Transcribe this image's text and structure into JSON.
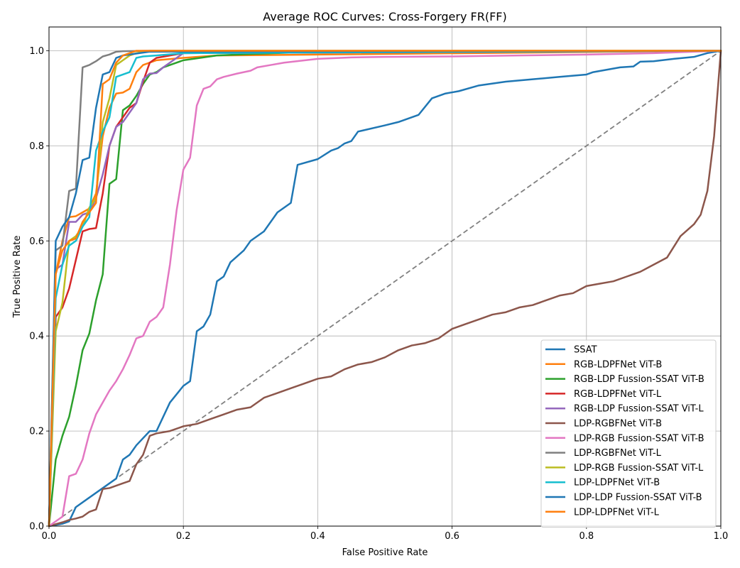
{
  "chart_data": {
    "type": "line",
    "title": "Average ROC Curves: Cross-Forgery FR(FF)",
    "xlabel": "False Positive Rate",
    "ylabel": "True Positive Rate",
    "xlim": [
      0,
      1
    ],
    "ylim": [
      0,
      1.05
    ],
    "xticks": [
      0.0,
      0.2,
      0.4,
      0.6,
      0.8,
      1.0
    ],
    "yticks": [
      0.0,
      0.2,
      0.4,
      0.6,
      0.8,
      1.0
    ],
    "xtick_labels": [
      "0.0",
      "0.2",
      "0.4",
      "0.6",
      "0.8",
      "1.0"
    ],
    "ytick_labels": [
      "0.0",
      "0.2",
      "0.4",
      "0.6",
      "0.8",
      "1.0"
    ],
    "grid": true,
    "legend_position": "lower-right",
    "diagonal": {
      "x": [
        0,
        1
      ],
      "y": [
        0,
        1
      ],
      "color": "#808080",
      "style": "dashed"
    },
    "series": [
      {
        "name": "SSAT",
        "color": "#1f77b4",
        "x": [
          0,
          0.02,
          0.03,
          0.04,
          0.06,
          0.08,
          0.1,
          0.11,
          0.12,
          0.13,
          0.15,
          0.16,
          0.18,
          0.2,
          0.21,
          0.22,
          0.23,
          0.24,
          0.25,
          0.26,
          0.27,
          0.29,
          0.3,
          0.32,
          0.33,
          0.34,
          0.36,
          0.37,
          0.4,
          0.42,
          0.43,
          0.44,
          0.45,
          0.46,
          0.5,
          0.52,
          0.55,
          0.57,
          0.59,
          0.61,
          0.64,
          0.68,
          0.72,
          0.76,
          0.8,
          0.81,
          0.83,
          0.85,
          0.87,
          0.88,
          0.9,
          0.93,
          0.96,
          0.98,
          1.0
        ],
        "y": [
          0,
          0.005,
          0.01,
          0.04,
          0.06,
          0.08,
          0.1,
          0.14,
          0.15,
          0.17,
          0.2,
          0.2,
          0.26,
          0.295,
          0.305,
          0.41,
          0.42,
          0.445,
          0.515,
          0.525,
          0.555,
          0.58,
          0.6,
          0.62,
          0.64,
          0.66,
          0.68,
          0.76,
          0.772,
          0.79,
          0.795,
          0.805,
          0.81,
          0.83,
          0.843,
          0.85,
          0.865,
          0.9,
          0.91,
          0.915,
          0.927,
          0.935,
          0.94,
          0.945,
          0.95,
          0.955,
          0.96,
          0.965,
          0.967,
          0.977,
          0.978,
          0.983,
          0.987,
          0.995,
          1.0
        ]
      },
      {
        "name": "RGB-LDPFNet ViT-B",
        "color": "#ff7f0e",
        "x": [
          0,
          0.01,
          0.02,
          0.03,
          0.04,
          0.05,
          0.06,
          0.07,
          0.08,
          0.09,
          0.1,
          0.11,
          0.12,
          0.13,
          0.14,
          0.15,
          0.16,
          0.2,
          0.25,
          1.0
        ],
        "y": [
          0,
          0.53,
          0.6,
          0.65,
          0.652,
          0.66,
          0.668,
          0.7,
          0.82,
          0.88,
          0.91,
          0.912,
          0.92,
          0.955,
          0.97,
          0.975,
          0.98,
          0.985,
          0.99,
          1.0
        ]
      },
      {
        "name": "RGB-LDP Fussion-SSAT ViT-B",
        "color": "#2ca02c",
        "x": [
          0,
          0.01,
          0.02,
          0.03,
          0.04,
          0.05,
          0.06,
          0.07,
          0.08,
          0.09,
          0.1,
          0.11,
          0.12,
          0.13,
          0.14,
          0.15,
          0.16,
          0.17,
          0.18,
          0.2,
          0.25,
          0.3,
          0.4,
          1.0
        ],
        "y": [
          0,
          0.14,
          0.19,
          0.23,
          0.295,
          0.37,
          0.405,
          0.475,
          0.53,
          0.72,
          0.73,
          0.875,
          0.885,
          0.905,
          0.93,
          0.95,
          0.955,
          0.965,
          0.97,
          0.98,
          0.99,
          0.993,
          0.998,
          1.0
        ]
      },
      {
        "name": "RGB-LDPFNet ViT-L",
        "color": "#d62728",
        "x": [
          0,
          0.01,
          0.02,
          0.03,
          0.04,
          0.05,
          0.06,
          0.07,
          0.08,
          0.09,
          0.1,
          0.11,
          0.12,
          0.13,
          0.14,
          0.15,
          0.16,
          0.2,
          1.0
        ],
        "y": [
          0,
          0.44,
          0.46,
          0.5,
          0.56,
          0.62,
          0.625,
          0.627,
          0.7,
          0.8,
          0.84,
          0.86,
          0.88,
          0.89,
          0.935,
          0.975,
          0.985,
          0.995,
          1.0
        ]
      },
      {
        "name": "RGB-LDP Fussion-SSAT ViT-L",
        "color": "#9467bd",
        "x": [
          0,
          0.01,
          0.02,
          0.03,
          0.04,
          0.05,
          0.06,
          0.07,
          0.08,
          0.09,
          0.1,
          0.11,
          0.12,
          0.13,
          0.14,
          0.15,
          0.16,
          0.17,
          0.18,
          0.19,
          0.2,
          1.0
        ],
        "y": [
          0,
          0.54,
          0.55,
          0.64,
          0.64,
          0.655,
          0.66,
          0.69,
          0.74,
          0.8,
          0.84,
          0.85,
          0.87,
          0.89,
          0.94,
          0.952,
          0.953,
          0.965,
          0.975,
          0.985,
          0.995,
          1.0
        ]
      },
      {
        "name": "LDP-RGBFNet ViT-B",
        "color": "#8c564b",
        "x": [
          0,
          0.02,
          0.03,
          0.04,
          0.05,
          0.06,
          0.07,
          0.08,
          0.09,
          0.1,
          0.11,
          0.12,
          0.13,
          0.14,
          0.15,
          0.16,
          0.18,
          0.2,
          0.22,
          0.24,
          0.26,
          0.28,
          0.3,
          0.32,
          0.34,
          0.36,
          0.38,
          0.4,
          0.42,
          0.44,
          0.46,
          0.48,
          0.5,
          0.52,
          0.54,
          0.56,
          0.58,
          0.6,
          0.62,
          0.64,
          0.66,
          0.68,
          0.7,
          0.72,
          0.74,
          0.76,
          0.78,
          0.8,
          0.82,
          0.84,
          0.86,
          0.88,
          0.9,
          0.92,
          0.94,
          0.96,
          0.97,
          0.98,
          0.99,
          1.0
        ],
        "y": [
          0,
          0.008,
          0.013,
          0.016,
          0.02,
          0.03,
          0.035,
          0.078,
          0.08,
          0.085,
          0.09,
          0.095,
          0.13,
          0.15,
          0.19,
          0.195,
          0.2,
          0.21,
          0.215,
          0.225,
          0.235,
          0.245,
          0.25,
          0.27,
          0.28,
          0.29,
          0.3,
          0.31,
          0.315,
          0.33,
          0.34,
          0.345,
          0.355,
          0.37,
          0.38,
          0.385,
          0.395,
          0.415,
          0.425,
          0.435,
          0.445,
          0.45,
          0.46,
          0.465,
          0.475,
          0.485,
          0.49,
          0.505,
          0.51,
          0.515,
          0.525,
          0.535,
          0.55,
          0.565,
          0.61,
          0.635,
          0.655,
          0.705,
          0.82,
          1.0
        ]
      },
      {
        "name": "LDP-RGB Fussion-SSAT ViT-B",
        "color": "#e377c2",
        "x": [
          0,
          0.02,
          0.03,
          0.04,
          0.05,
          0.06,
          0.07,
          0.08,
          0.09,
          0.1,
          0.11,
          0.12,
          0.13,
          0.14,
          0.15,
          0.16,
          0.17,
          0.18,
          0.19,
          0.2,
          0.21,
          0.22,
          0.23,
          0.24,
          0.25,
          0.26,
          0.28,
          0.3,
          0.31,
          0.33,
          0.35,
          0.4,
          0.45,
          0.5,
          0.6,
          0.7,
          0.8,
          0.9,
          1.0
        ],
        "y": [
          0,
          0.02,
          0.105,
          0.11,
          0.14,
          0.195,
          0.235,
          0.26,
          0.285,
          0.305,
          0.33,
          0.36,
          0.395,
          0.4,
          0.43,
          0.44,
          0.46,
          0.55,
          0.665,
          0.75,
          0.775,
          0.885,
          0.92,
          0.925,
          0.94,
          0.945,
          0.952,
          0.958,
          0.965,
          0.97,
          0.975,
          0.983,
          0.986,
          0.987,
          0.988,
          0.99,
          0.992,
          0.995,
          1.0
        ]
      },
      {
        "name": "LDP-RGBFNet ViT-L",
        "color": "#7f7f7f",
        "x": [
          0,
          0.01,
          0.02,
          0.03,
          0.04,
          0.05,
          0.06,
          0.07,
          0.08,
          0.09,
          0.1,
          0.11,
          0.15,
          1.0
        ],
        "y": [
          0,
          0.58,
          0.59,
          0.705,
          0.71,
          0.965,
          0.97,
          0.978,
          0.988,
          0.992,
          0.998,
          0.999,
          1.0,
          1.0
        ]
      },
      {
        "name": "LDP-RGB Fussion-SSAT ViT-L",
        "color": "#bcbd22",
        "x": [
          0,
          0.01,
          0.02,
          0.03,
          0.04,
          0.05,
          0.06,
          0.07,
          0.08,
          0.09,
          0.1,
          0.11,
          0.12,
          0.13,
          0.15,
          1.0
        ],
        "y": [
          0,
          0.41,
          0.47,
          0.6,
          0.61,
          0.63,
          0.67,
          0.69,
          0.85,
          0.9,
          0.97,
          0.98,
          0.99,
          0.995,
          1.0,
          1.0
        ]
      },
      {
        "name": "LDP-LDPFNet ViT-B",
        "color": "#17becf",
        "x": [
          0,
          0.01,
          0.02,
          0.03,
          0.04,
          0.05,
          0.06,
          0.07,
          0.08,
          0.09,
          0.1,
          0.11,
          0.12,
          0.13,
          0.14,
          0.16,
          0.2,
          1.0
        ],
        "y": [
          0,
          0.48,
          0.55,
          0.59,
          0.6,
          0.63,
          0.65,
          0.79,
          0.83,
          0.86,
          0.945,
          0.95,
          0.955,
          0.985,
          0.988,
          0.99,
          0.995,
          1.0
        ]
      },
      {
        "name": "LDP-LDP Fussion-SSAT ViT-B",
        "color": "#1f77b4",
        "x": [
          0,
          0.01,
          0.02,
          0.03,
          0.04,
          0.05,
          0.06,
          0.07,
          0.08,
          0.09,
          0.1,
          0.11,
          0.15,
          1.0
        ],
        "y": [
          0,
          0.6,
          0.63,
          0.65,
          0.7,
          0.77,
          0.775,
          0.88,
          0.95,
          0.955,
          0.985,
          0.99,
          0.998,
          1.0
        ]
      },
      {
        "name": "LDP-LDPFNet ViT-L",
        "color": "#ff7f0e",
        "x": [
          0,
          0.01,
          0.02,
          0.03,
          0.04,
          0.05,
          0.06,
          0.07,
          0.08,
          0.09,
          0.1,
          0.11,
          0.12,
          0.13,
          1.0
        ],
        "y": [
          0,
          0.53,
          0.58,
          0.6,
          0.605,
          0.64,
          0.66,
          0.68,
          0.93,
          0.94,
          0.975,
          0.99,
          0.995,
          1.0,
          1.0
        ]
      }
    ]
  }
}
